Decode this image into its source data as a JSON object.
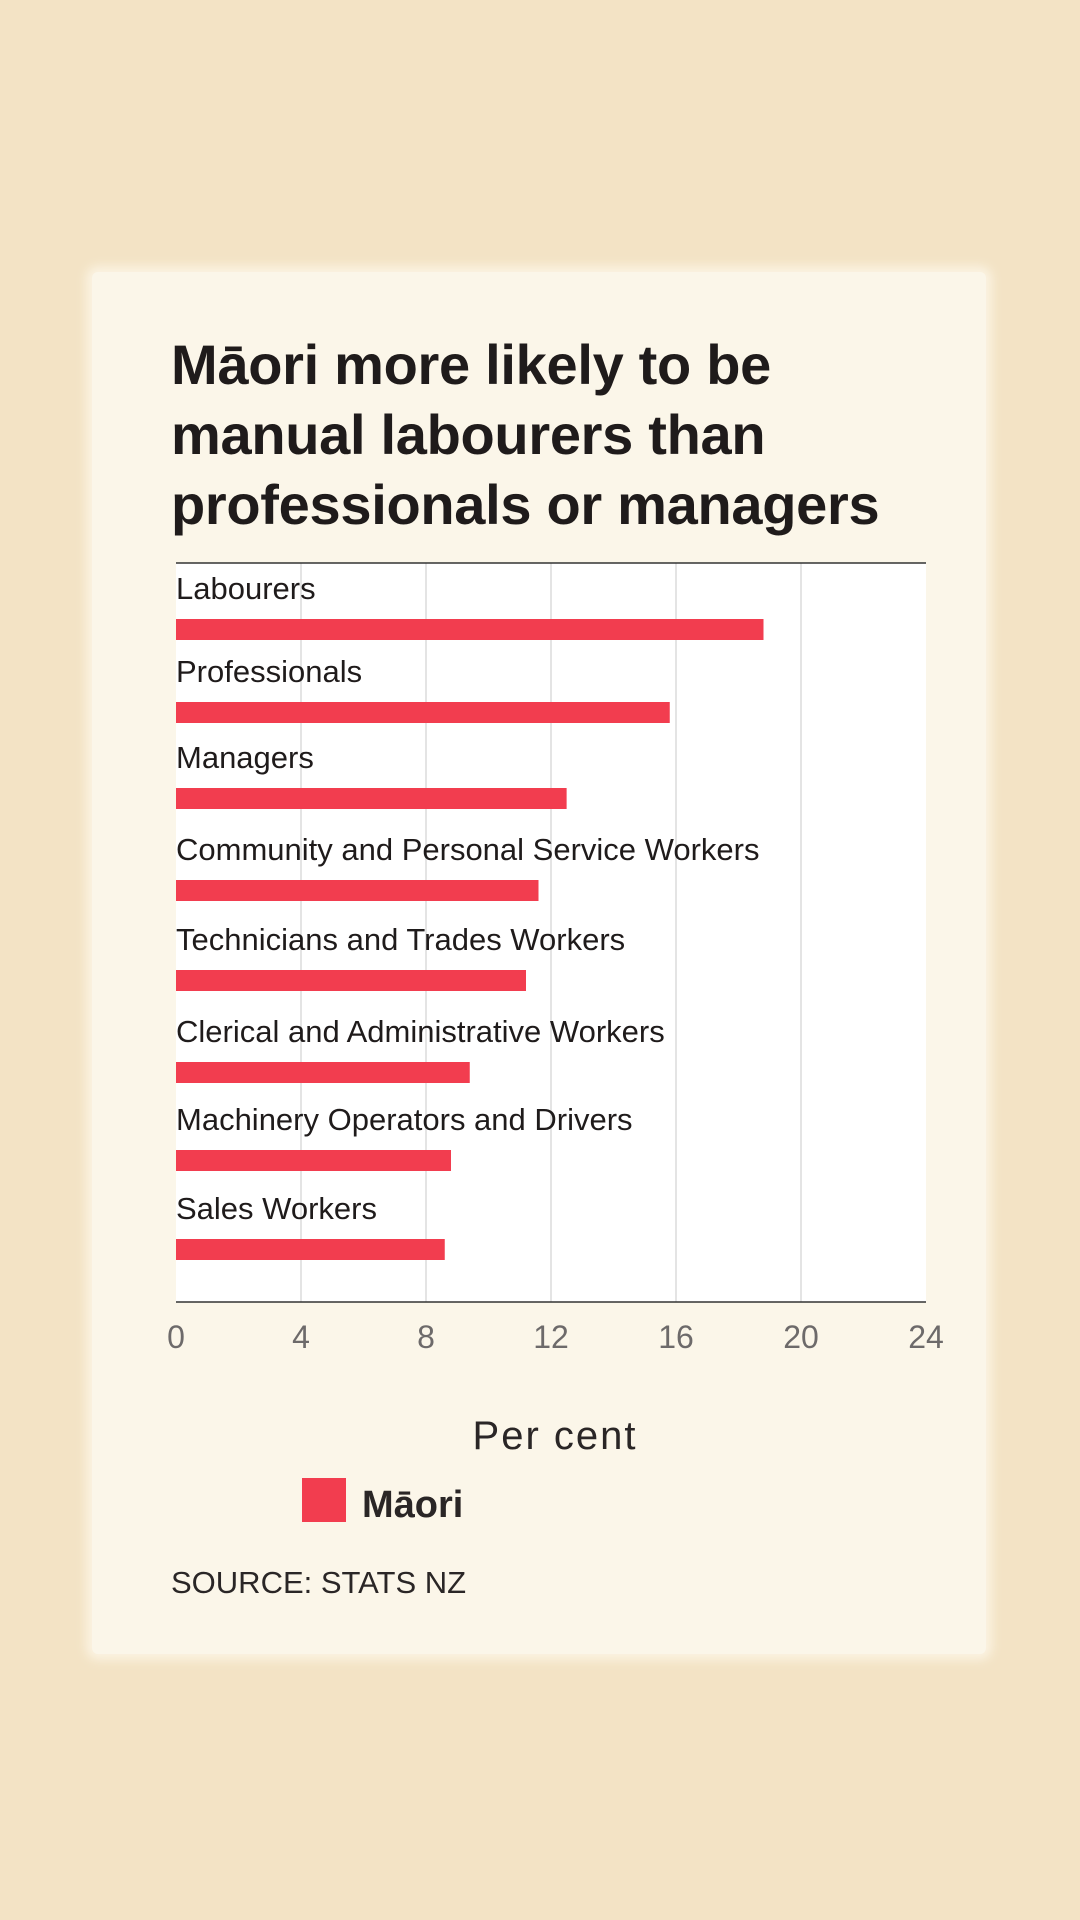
{
  "chart_data": {
    "type": "bar",
    "orientation": "horizontal",
    "title": "Māori more likely to be manual labourers than professionals or managers",
    "categories": [
      "Labourers",
      "Professionals",
      "Managers",
      "Community and Personal Service Workers",
      "Technicians and Trades Workers",
      "Clerical and Administrative Workers",
      "Machinery Operators and Drivers",
      "Sales Workers"
    ],
    "series": [
      {
        "name": "Māori",
        "color": "#f23d4f",
        "values": [
          18.8,
          15.8,
          12.5,
          11.6,
          11.2,
          9.4,
          8.8,
          8.6
        ]
      }
    ],
    "xlabel": "Per cent",
    "ylabel": "",
    "xlim": [
      0,
      24
    ],
    "xticks": [
      "0",
      "4",
      "8",
      "12",
      "16",
      "20",
      "24"
    ],
    "grid": true,
    "legend_position": "bottom-left",
    "source": "SOURCE: STATS NZ"
  }
}
